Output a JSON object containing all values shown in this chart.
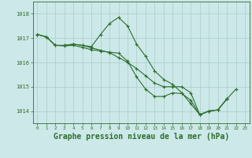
{
  "background_color": "#cce8e8",
  "grid_color": "#aacccc",
  "line_color": "#2d6e2d",
  "xlabel": "Graphe pression niveau de la mer (hPa)",
  "xlabel_fontsize": 7,
  "xlim": [
    -0.5,
    23.5
  ],
  "ylim": [
    1013.5,
    1018.5
  ],
  "yticks": [
    1014,
    1015,
    1016,
    1017,
    1018
  ],
  "xticks": [
    0,
    1,
    2,
    3,
    4,
    5,
    6,
    7,
    8,
    9,
    10,
    11,
    12,
    13,
    14,
    15,
    16,
    17,
    18,
    19,
    20,
    21,
    22,
    23
  ],
  "line1_x": [
    0,
    1,
    2,
    3,
    4,
    5,
    6,
    7,
    8,
    9,
    10,
    11,
    12,
    13,
    14,
    15,
    16,
    17,
    18,
    19,
    20,
    21
  ],
  "line1_y": [
    1017.15,
    1017.05,
    1016.7,
    1016.7,
    1016.75,
    1016.7,
    1016.65,
    1017.15,
    1017.6,
    1017.85,
    1017.5,
    1016.75,
    1016.25,
    1015.65,
    1015.3,
    1015.1,
    1014.75,
    1014.3,
    1013.85,
    1014.0,
    1014.05,
    1014.5
  ],
  "line2_x": [
    0,
    1,
    2,
    3,
    4,
    5,
    6,
    7,
    8,
    9,
    10,
    11,
    12,
    13,
    14,
    15,
    16,
    17,
    18,
    19,
    20,
    21
  ],
  "line2_y": [
    1017.15,
    1017.05,
    1016.7,
    1016.7,
    1016.75,
    1016.7,
    1016.6,
    1016.5,
    1016.4,
    1016.2,
    1016.0,
    1015.75,
    1015.45,
    1015.15,
    1015.0,
    1015.0,
    1015.0,
    1014.75,
    1013.85,
    1014.0,
    1014.05,
    1014.5
  ],
  "line3_x": [
    0,
    1,
    2,
    3,
    4,
    5,
    6,
    7,
    8,
    9,
    10,
    11,
    12,
    13,
    14,
    15,
    16,
    17,
    18,
    19,
    20,
    21
  ],
  "line3_y": [
    1017.15,
    1017.05,
    1016.7,
    1016.68,
    1016.7,
    1016.62,
    1016.52,
    1016.47,
    1016.42,
    1016.38,
    1016.05,
    1015.4,
    1014.9,
    1014.6,
    1014.6,
    1014.75,
    1014.72,
    1014.45,
    1013.85,
    1014.0,
    1014.05,
    1014.5
  ],
  "line4_x": [
    21,
    22
  ],
  "line4_y": [
    1014.5,
    1014.9
  ]
}
